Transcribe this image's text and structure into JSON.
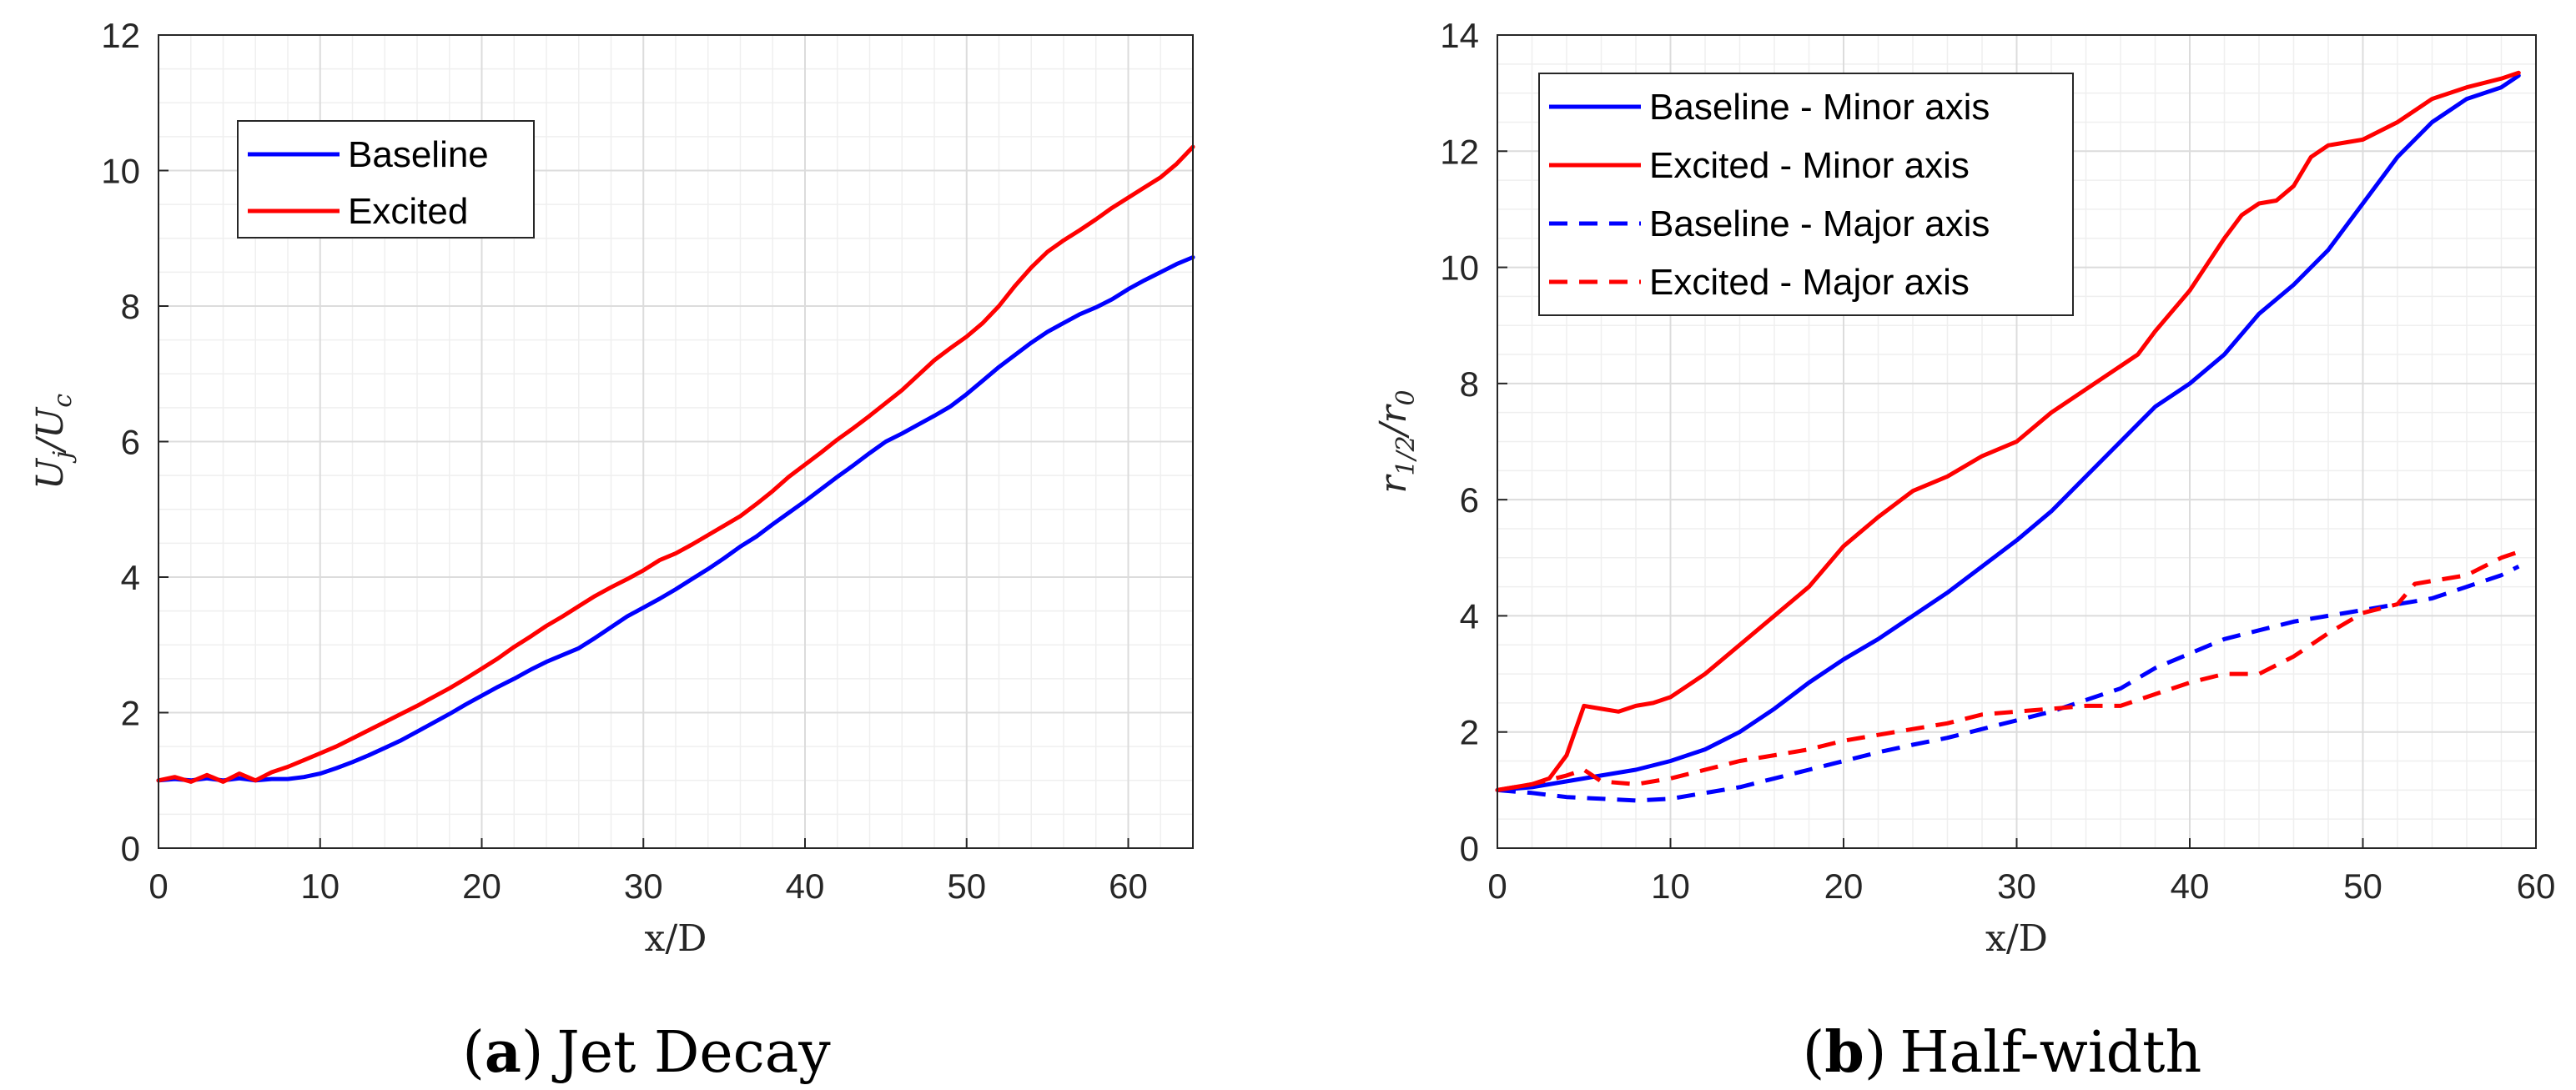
{
  "colors": {
    "baseline": "#0000ff",
    "excited": "#ff0000",
    "grid_major": "#dcdcdc",
    "grid_minor": "#efefef",
    "axis": "#262626"
  },
  "chart_data": [
    {
      "id": "a",
      "type": "line",
      "title": "Jet Decay",
      "caption_letter": "a",
      "caption_open": "(",
      "caption_close": ")",
      "xlabel": "x/D",
      "ylabel_main": "U",
      "ylabel_sub": "j",
      "ylabel_slash": "/U",
      "ylabel_sub2": "c",
      "xlim": [
        0,
        64
      ],
      "ylim": [
        0,
        12
      ],
      "xticks": [
        0,
        10,
        20,
        30,
        40,
        50,
        60
      ],
      "yticks": [
        0,
        2,
        4,
        6,
        8,
        10,
        12
      ],
      "grid": true,
      "legend_position": "top-left",
      "series": [
        {
          "name": "Baseline",
          "style": "solid",
          "color_key": "baseline",
          "points": [
            [
              0,
              1.0
            ],
            [
              1,
              1.02
            ],
            [
              2,
              1.0
            ],
            [
              3,
              1.03
            ],
            [
              4,
              1.0
            ],
            [
              5,
              1.03
            ],
            [
              6,
              1.0
            ],
            [
              7,
              1.02
            ],
            [
              8,
              1.02
            ],
            [
              9,
              1.05
            ],
            [
              10,
              1.1
            ],
            [
              11,
              1.18
            ],
            [
              12,
              1.27
            ],
            [
              13,
              1.37
            ],
            [
              14,
              1.48
            ],
            [
              15,
              1.59
            ],
            [
              16,
              1.72
            ],
            [
              17,
              1.85
            ],
            [
              18,
              1.98
            ],
            [
              19,
              2.12
            ],
            [
              20,
              2.25
            ],
            [
              21,
              2.38
            ],
            [
              22,
              2.5
            ],
            [
              23,
              2.63
            ],
            [
              24,
              2.75
            ],
            [
              25,
              2.85
            ],
            [
              26,
              2.95
            ],
            [
              27,
              3.1
            ],
            [
              28,
              3.26
            ],
            [
              29,
              3.42
            ],
            [
              30,
              3.55
            ],
            [
              31,
              3.68
            ],
            [
              32,
              3.82
            ],
            [
              33,
              3.97
            ],
            [
              34,
              4.12
            ],
            [
              35,
              4.28
            ],
            [
              36,
              4.45
            ],
            [
              37,
              4.6
            ],
            [
              38,
              4.78
            ],
            [
              39,
              4.95
            ],
            [
              40,
              5.12
            ],
            [
              41,
              5.3
            ],
            [
              42,
              5.48
            ],
            [
              43,
              5.65
            ],
            [
              44,
              5.83
            ],
            [
              45,
              6.0
            ],
            [
              46,
              6.12
            ],
            [
              47,
              6.25
            ],
            [
              48,
              6.38
            ],
            [
              49,
              6.52
            ],
            [
              50,
              6.7
            ],
            [
              51,
              6.9
            ],
            [
              52,
              7.1
            ],
            [
              53,
              7.28
            ],
            [
              54,
              7.46
            ],
            [
              55,
              7.62
            ],
            [
              56,
              7.75
            ],
            [
              57,
              7.88
            ],
            [
              58,
              7.98
            ],
            [
              59,
              8.1
            ],
            [
              60,
              8.25
            ],
            [
              61,
              8.38
            ],
            [
              62,
              8.5
            ],
            [
              63,
              8.62
            ],
            [
              64,
              8.72
            ]
          ]
        },
        {
          "name": "Excited",
          "style": "solid",
          "color_key": "excited",
          "points": [
            [
              0,
              1.0
            ],
            [
              1,
              1.05
            ],
            [
              2,
              0.98
            ],
            [
              3,
              1.08
            ],
            [
              4,
              0.98
            ],
            [
              5,
              1.1
            ],
            [
              6,
              1.0
            ],
            [
              7,
              1.12
            ],
            [
              8,
              1.2
            ],
            [
              9,
              1.3
            ],
            [
              10,
              1.4
            ],
            [
              11,
              1.5
            ],
            [
              12,
              1.62
            ],
            [
              13,
              1.74
            ],
            [
              14,
              1.86
            ],
            [
              15,
              1.98
            ],
            [
              16,
              2.1
            ],
            [
              17,
              2.23
            ],
            [
              18,
              2.36
            ],
            [
              19,
              2.5
            ],
            [
              20,
              2.65
            ],
            [
              21,
              2.8
            ],
            [
              22,
              2.97
            ],
            [
              23,
              3.12
            ],
            [
              24,
              3.28
            ],
            [
              25,
              3.42
            ],
            [
              26,
              3.57
            ],
            [
              27,
              3.72
            ],
            [
              28,
              3.85
            ],
            [
              29,
              3.97
            ],
            [
              30,
              4.1
            ],
            [
              31,
              4.25
            ],
            [
              32,
              4.35
            ],
            [
              33,
              4.48
            ],
            [
              34,
              4.62
            ],
            [
              35,
              4.76
            ],
            [
              36,
              4.9
            ],
            [
              37,
              5.08
            ],
            [
              38,
              5.27
            ],
            [
              39,
              5.48
            ],
            [
              40,
              5.66
            ],
            [
              41,
              5.84
            ],
            [
              42,
              6.03
            ],
            [
              43,
              6.2
            ],
            [
              44,
              6.38
            ],
            [
              45,
              6.57
            ],
            [
              46,
              6.76
            ],
            [
              47,
              6.98
            ],
            [
              48,
              7.2
            ],
            [
              49,
              7.38
            ],
            [
              50,
              7.55
            ],
            [
              51,
              7.75
            ],
            [
              52,
              8.0
            ],
            [
              53,
              8.3
            ],
            [
              54,
              8.57
            ],
            [
              55,
              8.8
            ],
            [
              56,
              8.97
            ],
            [
              57,
              9.12
            ],
            [
              58,
              9.28
            ],
            [
              59,
              9.45
            ],
            [
              60,
              9.6
            ],
            [
              61,
              9.75
            ],
            [
              62,
              9.9
            ],
            [
              63,
              10.1
            ],
            [
              64,
              10.35
            ]
          ]
        }
      ]
    },
    {
      "id": "b",
      "type": "line",
      "title": "Half-width",
      "caption_letter": "b",
      "caption_open": "(",
      "caption_close": ")",
      "xlabel": "x/D",
      "ylabel_main": "r",
      "ylabel_sub": "1/2",
      "ylabel_slash": "/r",
      "ylabel_sub2": "0",
      "xlim": [
        0,
        60
      ],
      "ylim": [
        0,
        14
      ],
      "xticks": [
        0,
        10,
        20,
        30,
        40,
        50,
        60
      ],
      "yticks": [
        0,
        2,
        4,
        6,
        8,
        10,
        12,
        14
      ],
      "grid": true,
      "legend_position": "top-left",
      "series": [
        {
          "name": "Baseline - Minor axis",
          "style": "solid",
          "color_key": "baseline",
          "points": [
            [
              0,
              1.0
            ],
            [
              2,
              1.05
            ],
            [
              4,
              1.15
            ],
            [
              6,
              1.25
            ],
            [
              8,
              1.35
            ],
            [
              10,
              1.5
            ],
            [
              12,
              1.7
            ],
            [
              14,
              2.0
            ],
            [
              16,
              2.4
            ],
            [
              18,
              2.85
            ],
            [
              20,
              3.25
            ],
            [
              22,
              3.6
            ],
            [
              24,
              4.0
            ],
            [
              26,
              4.4
            ],
            [
              28,
              4.85
            ],
            [
              30,
              5.3
            ],
            [
              32,
              5.8
            ],
            [
              34,
              6.4
            ],
            [
              36,
              7.0
            ],
            [
              38,
              7.6
            ],
            [
              40,
              8.0
            ],
            [
              42,
              8.5
            ],
            [
              44,
              9.2
            ],
            [
              46,
              9.7
            ],
            [
              48,
              10.3
            ],
            [
              50,
              11.1
            ],
            [
              52,
              11.9
            ],
            [
              54,
              12.5
            ],
            [
              56,
              12.9
            ],
            [
              58,
              13.1
            ],
            [
              59,
              13.3
            ]
          ]
        },
        {
          "name": "Excited - Minor axis",
          "style": "solid",
          "color_key": "excited",
          "points": [
            [
              0,
              1.0
            ],
            [
              2,
              1.1
            ],
            [
              3,
              1.2
            ],
            [
              4,
              1.6
            ],
            [
              5,
              2.45
            ],
            [
              6,
              2.4
            ],
            [
              7,
              2.35
            ],
            [
              8,
              2.45
            ],
            [
              9,
              2.5
            ],
            [
              10,
              2.6
            ],
            [
              12,
              3.0
            ],
            [
              14,
              3.5
            ],
            [
              16,
              4.0
            ],
            [
              18,
              4.5
            ],
            [
              20,
              5.2
            ],
            [
              22,
              5.7
            ],
            [
              24,
              6.15
            ],
            [
              26,
              6.4
            ],
            [
              28,
              6.75
            ],
            [
              30,
              7.0
            ],
            [
              32,
              7.5
            ],
            [
              34,
              7.9
            ],
            [
              36,
              8.3
            ],
            [
              37,
              8.5
            ],
            [
              38,
              8.9
            ],
            [
              40,
              9.6
            ],
            [
              42,
              10.5
            ],
            [
              43,
              10.9
            ],
            [
              44,
              11.1
            ],
            [
              45,
              11.15
            ],
            [
              46,
              11.4
            ],
            [
              47,
              11.9
            ],
            [
              48,
              12.1
            ],
            [
              50,
              12.2
            ],
            [
              52,
              12.5
            ],
            [
              54,
              12.9
            ],
            [
              56,
              13.1
            ],
            [
              58,
              13.25
            ],
            [
              59,
              13.35
            ]
          ]
        },
        {
          "name": "Baseline - Major axis",
          "style": "dashed",
          "color_key": "baseline",
          "points": [
            [
              0,
              1.0
            ],
            [
              2,
              0.95
            ],
            [
              4,
              0.88
            ],
            [
              6,
              0.85
            ],
            [
              8,
              0.82
            ],
            [
              10,
              0.85
            ],
            [
              12,
              0.95
            ],
            [
              14,
              1.05
            ],
            [
              16,
              1.2
            ],
            [
              18,
              1.35
            ],
            [
              20,
              1.5
            ],
            [
              22,
              1.65
            ],
            [
              24,
              1.78
            ],
            [
              26,
              1.9
            ],
            [
              28,
              2.05
            ],
            [
              30,
              2.2
            ],
            [
              32,
              2.35
            ],
            [
              34,
              2.55
            ],
            [
              36,
              2.75
            ],
            [
              38,
              3.1
            ],
            [
              40,
              3.35
            ],
            [
              42,
              3.6
            ],
            [
              44,
              3.75
            ],
            [
              46,
              3.9
            ],
            [
              48,
              4.0
            ],
            [
              50,
              4.1
            ],
            [
              52,
              4.2
            ],
            [
              54,
              4.3
            ],
            [
              56,
              4.5
            ],
            [
              58,
              4.7
            ],
            [
              59,
              4.85
            ]
          ]
        },
        {
          "name": "Excited - Major axis",
          "style": "dashed",
          "color_key": "excited",
          "points": [
            [
              0,
              1.0
            ],
            [
              2,
              1.1
            ],
            [
              4,
              1.25
            ],
            [
              5,
              1.35
            ],
            [
              6,
              1.15
            ],
            [
              8,
              1.1
            ],
            [
              10,
              1.2
            ],
            [
              12,
              1.35
            ],
            [
              14,
              1.5
            ],
            [
              16,
              1.6
            ],
            [
              18,
              1.7
            ],
            [
              20,
              1.85
            ],
            [
              22,
              1.95
            ],
            [
              24,
              2.05
            ],
            [
              26,
              2.15
            ],
            [
              28,
              2.3
            ],
            [
              30,
              2.35
            ],
            [
              32,
              2.4
            ],
            [
              34,
              2.45
            ],
            [
              36,
              2.45
            ],
            [
              38,
              2.65
            ],
            [
              40,
              2.85
            ],
            [
              42,
              3.0
            ],
            [
              44,
              3.0
            ],
            [
              46,
              3.3
            ],
            [
              48,
              3.7
            ],
            [
              50,
              4.05
            ],
            [
              52,
              4.2
            ],
            [
              53,
              4.55
            ],
            [
              54,
              4.6
            ],
            [
              56,
              4.7
            ],
            [
              58,
              5.0
            ],
            [
              59,
              5.1
            ]
          ]
        }
      ]
    }
  ]
}
